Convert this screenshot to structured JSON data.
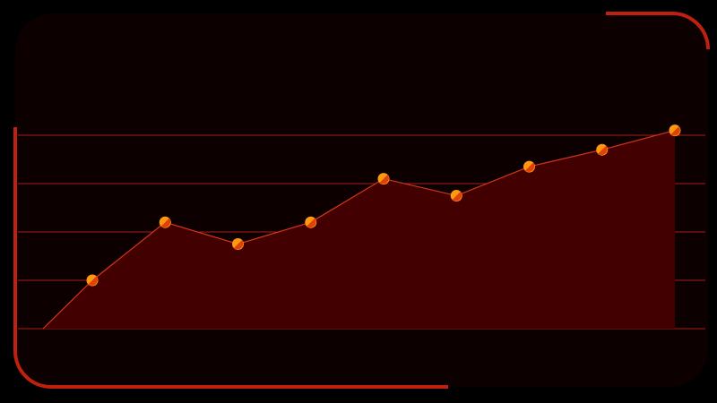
{
  "chart_data": {
    "type": "area",
    "title": "",
    "xlabel": "",
    "ylabel": "",
    "ylim": [
      0,
      4
    ],
    "grid": true,
    "legend": "none",
    "series": [
      {
        "x": [
          0,
          1,
          2,
          3,
          4,
          5,
          6,
          7,
          8,
          9
        ],
        "values": [
          0,
          1.0,
          2.2,
          1.75,
          2.2,
          3.1,
          2.75,
          3.35,
          3.7,
          4.1
        ]
      }
    ]
  },
  "colors": {
    "background": "#000000",
    "panel": "#0d0000",
    "accent": "#c0200f",
    "area": "#420000",
    "line": "#d8341c",
    "grid": "#a3200f",
    "marker": "#ff9a10",
    "marker_shade": "#e0400a"
  }
}
